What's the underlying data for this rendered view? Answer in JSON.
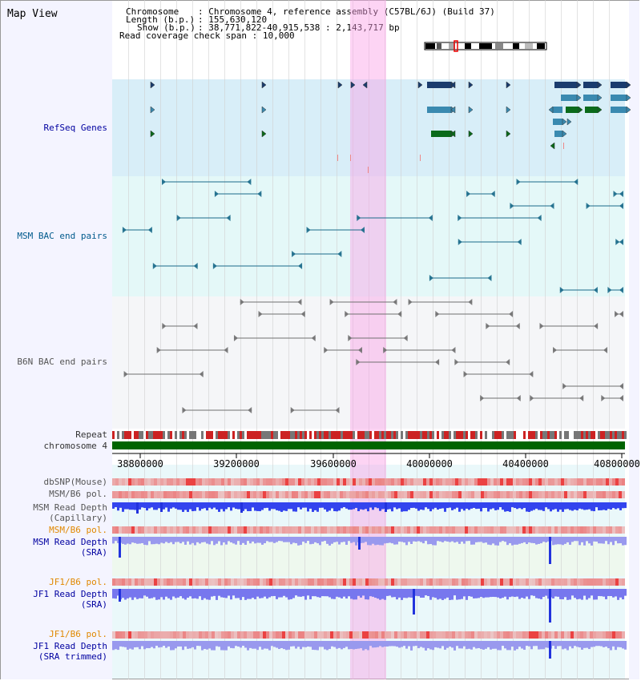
{
  "title": "Map View",
  "info": {
    "chromosome_label": "Chromosome",
    "chromosome_value": "Chromosome 4, reference assembly (C57BL/6J) (Build 37)",
    "length_label": "Length (b.p.)",
    "length_value": "155,630,120",
    "show_label": "Show (b.p.)",
    "show_value": "38,771,822-40,915,538 : 2,143,717 bp",
    "coverage_label": "Read coverage check span",
    "coverage_value": "10,000"
  },
  "tracks": {
    "refseq": "RefSeq Genes",
    "msm_bac": "MSM BAC end pairs",
    "b6n_bac": "B6N BAC end pairs",
    "repeat": "Repeat",
    "chromosome": "chromosome 4",
    "dbsnp": "dbSNP(Mouse)",
    "msm_b6_pol": "MSM/B6 pol.",
    "msm_depth_cap_1": "MSM Read Depth",
    "msm_depth_cap_2": "(Capillary)",
    "msm_b6_pol_2": "MSM/B6 pol.",
    "msm_depth_sra_1": "MSM Read Depth",
    "msm_depth_sra_2": "(SRA)",
    "jf1_b6_pol": "JF1/B6 pol.",
    "jf1_depth_sra_1": "JF1 Read Depth",
    "jf1_depth_sra_2": "(SRA)",
    "jf1_b6_pol_2": "JF1/B6 pol.",
    "jf1_depth_trim_1": "JF1 Read Depth",
    "jf1_depth_trim_2": "(SRA trimmed)"
  },
  "axis_ticks": [
    "38800000",
    "39200000",
    "39600000",
    "40000000",
    "40400000",
    "40800000"
  ],
  "colors": {
    "refseq_bg": "#d8eef8",
    "msm_bg": "#e4f8f8",
    "b6n_bg": "#f4f6f8",
    "highlight": "#f8c8ec",
    "chromosome": "#006400",
    "depth_blue": "#2233dd",
    "depth_light": "#8888ee",
    "snp_red": "#ee3333"
  }
}
